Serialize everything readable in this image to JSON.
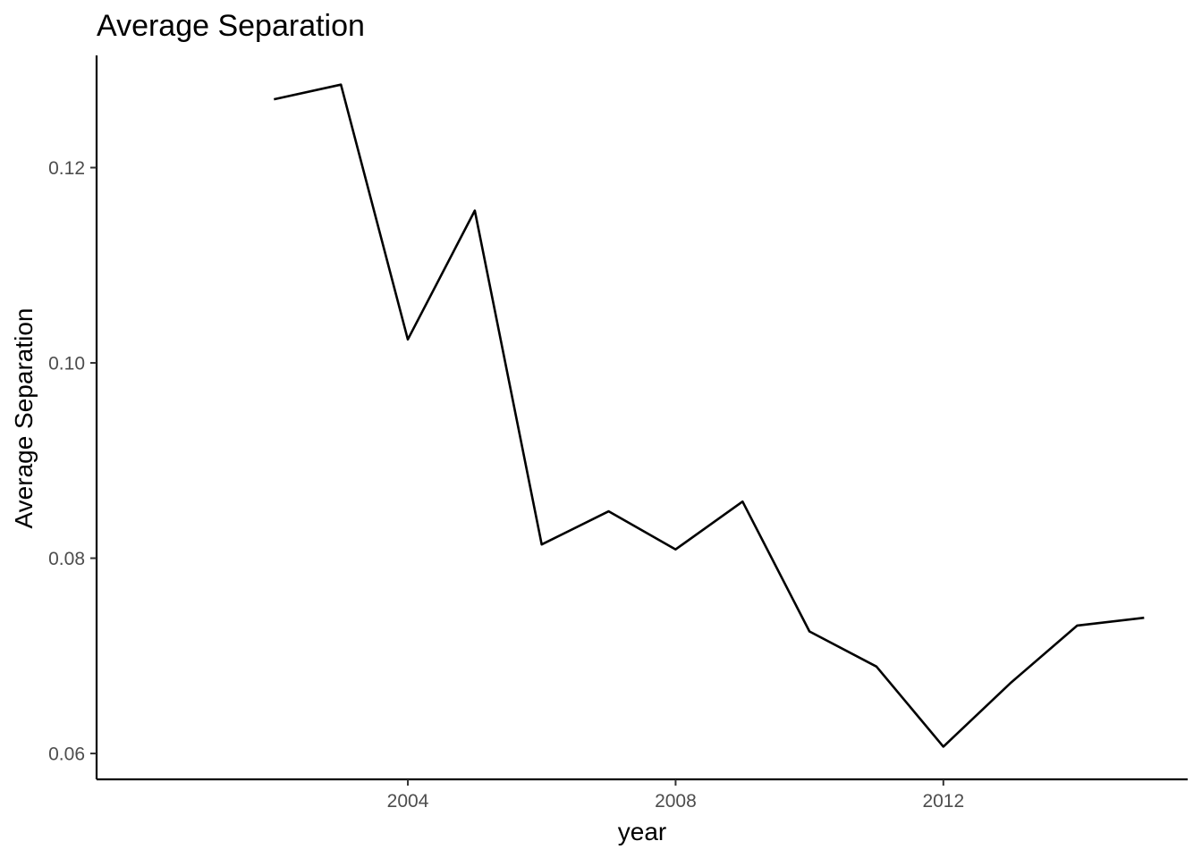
{
  "chart_data": {
    "type": "line",
    "title": "Average Separation",
    "xlabel": "year",
    "ylabel": "Average Separation",
    "x": [
      2002,
      2003,
      2004,
      2005,
      2006,
      2007,
      2008,
      2009,
      2010,
      2011,
      2012,
      2013,
      2014,
      2015
    ],
    "series": [
      {
        "values": [
          0.127,
          0.1285,
          0.1024,
          0.1156,
          0.0814,
          0.0848,
          0.0809,
          0.0858,
          0.0725,
          0.0689,
          0.0607,
          0.0672,
          0.0731,
          0.0739
        ]
      }
    ],
    "xlim": [
      1999.35,
      2015.65
    ],
    "ylim": [
      0.05735,
      0.13149
    ],
    "xticks": [
      2004,
      2008,
      2012
    ],
    "xtick_labels": [
      "2004",
      "2008",
      "2012"
    ],
    "yticks": [
      0.06,
      0.08,
      0.1,
      0.12
    ],
    "ytick_labels": [
      "0.06",
      "0.08",
      "0.10",
      "0.12"
    ],
    "grid": false,
    "legend": "none",
    "line_color": "#000000"
  }
}
